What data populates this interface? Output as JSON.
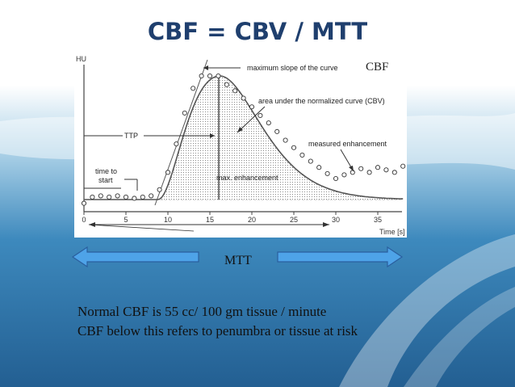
{
  "slide": {
    "title": "CBF = CBV / MTT",
    "cbf_label": "CBF",
    "mtt_label": "MTT",
    "notes": [
      "Normal CBF is 55 cc/ 100 gm tissue / minute",
      "CBF below this refers to penumbra or tissue at risk"
    ]
  },
  "diagram": {
    "y_axis_label": "HU",
    "x_axis_label": "Time [s]",
    "x_ticks": [
      "0",
      "5",
      "10",
      "15",
      "20",
      "25",
      "30",
      "35"
    ],
    "annotations": {
      "max_slope": "maximum slope of the curve",
      "area": "area under the normalized curve (CBV)",
      "measured": "measured enhancement",
      "ttp": "TTP",
      "time_to_start_1": "time to",
      "time_to_start_2": "start",
      "max_enhancement": "max. enhancement"
    }
  },
  "chart_data": {
    "type": "scatter",
    "xlabel": "Time [s]",
    "ylabel": "HU",
    "xlim": [
      0,
      38
    ],
    "x_ticks": [
      0,
      5,
      10,
      15,
      20,
      25,
      30,
      35
    ],
    "series": [
      {
        "x": [
          0,
          1,
          2,
          3,
          4,
          5,
          6,
          7,
          8,
          9,
          10,
          11,
          12,
          13,
          14,
          15,
          16,
          17,
          18,
          19,
          20,
          21,
          22,
          23,
          24,
          25,
          26,
          27,
          28,
          29,
          30,
          31,
          32,
          33,
          34,
          35,
          36,
          37,
          38
        ],
        "values": [
          -3,
          2,
          3,
          2,
          3,
          2,
          1,
          2,
          3,
          8,
          22,
          45,
          70,
          90,
          100,
          100,
          100,
          93,
          88,
          82,
          75,
          68,
          62,
          55,
          48,
          42,
          36,
          31,
          26,
          21,
          17,
          20,
          22,
          25,
          22,
          26,
          24,
          22,
          27
        ]
      }
    ]
  },
  "colors": {
    "title": "#1f3f6e",
    "arrow_fill": "#4ea3e8",
    "arrow_stroke": "#2a5f9e",
    "background_blue": "#2f7bb1"
  }
}
